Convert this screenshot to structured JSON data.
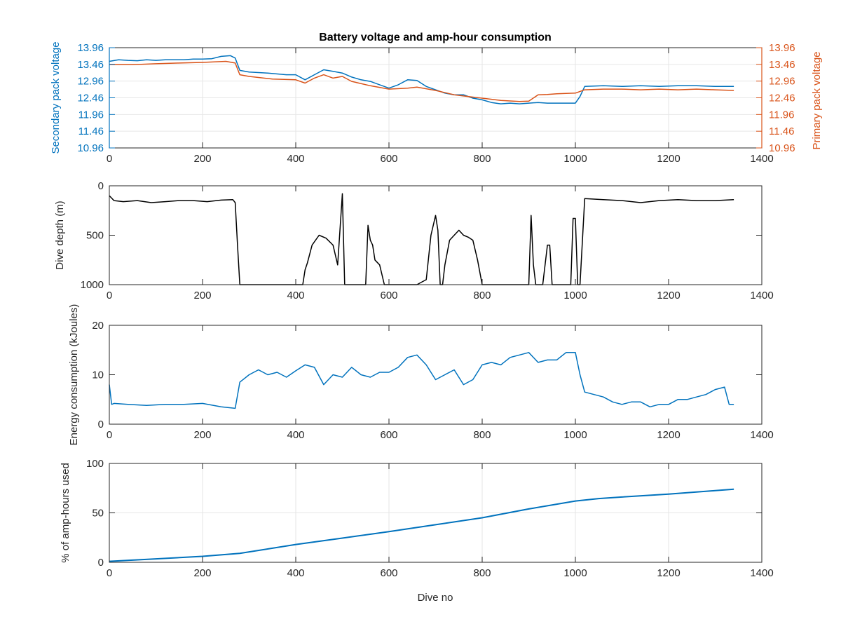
{
  "figure": {
    "title": "Battery voltage and amp-hour consumption",
    "xlabel": "Dive no"
  },
  "colors": {
    "blue": "#0072BD",
    "orange": "#D95319",
    "black": "#000000",
    "axis": "#262626",
    "grid": "#e6e6e6"
  },
  "chart_data": [
    {
      "type": "line",
      "title": "Battery voltage and amp-hour consumption",
      "xlabel": "",
      "ylabel": "Secondary pack voltage",
      "ylabel_right": "Primary pack voltage",
      "xlim": [
        0,
        1400
      ],
      "ylim": [
        10.96,
        13.96
      ],
      "xticks": [
        "0",
        "200",
        "400",
        "600",
        "800",
        "1000",
        "1200",
        "1400"
      ],
      "yticks": [
        "13.96",
        "13.46",
        "12.96",
        "12.46",
        "11.96",
        "11.46",
        "10.96"
      ],
      "yticks_right": [
        "13.96",
        "13.46",
        "12.96",
        "12.46",
        "11.96",
        "11.46",
        "10.96"
      ],
      "grid": true,
      "series": [
        {
          "color": "blue",
          "axis": "left",
          "x": [
            0,
            20,
            40,
            60,
            80,
            100,
            120,
            140,
            160,
            180,
            200,
            220,
            240,
            260,
            270,
            280,
            300,
            340,
            380,
            400,
            420,
            440,
            460,
            480,
            500,
            520,
            540,
            560,
            580,
            600,
            620,
            640,
            660,
            680,
            700,
            720,
            740,
            760,
            780,
            800,
            820,
            840,
            860,
            880,
            900,
            920,
            940,
            960,
            980,
            1000,
            1010,
            1020,
            1060,
            1100,
            1140,
            1180,
            1220,
            1260,
            1300,
            1340
          ],
          "y": [
            13.55,
            13.6,
            13.58,
            13.57,
            13.6,
            13.58,
            13.6,
            13.6,
            13.6,
            13.62,
            13.62,
            13.63,
            13.7,
            13.72,
            13.65,
            13.28,
            13.23,
            13.2,
            13.15,
            13.15,
            13.0,
            13.15,
            13.3,
            13.25,
            13.2,
            13.08,
            13.0,
            12.95,
            12.85,
            12.75,
            12.85,
            13.0,
            12.98,
            12.8,
            12.7,
            12.6,
            12.55,
            12.55,
            12.45,
            12.4,
            12.32,
            12.28,
            12.3,
            12.28,
            12.3,
            12.32,
            12.3,
            12.3,
            12.3,
            12.3,
            12.5,
            12.8,
            12.82,
            12.8,
            12.82,
            12.8,
            12.82,
            12.82,
            12.8,
            12.8
          ]
        },
        {
          "color": "orange",
          "axis": "right",
          "x": [
            0,
            50,
            100,
            150,
            200,
            250,
            270,
            280,
            300,
            350,
            400,
            420,
            440,
            460,
            480,
            500,
            520,
            560,
            600,
            640,
            660,
            700,
            740,
            780,
            800,
            840,
            880,
            900,
            920,
            940,
            960,
            1000,
            1020,
            1060,
            1100,
            1140,
            1180,
            1220,
            1260,
            1300,
            1340
          ],
          "y": [
            13.45,
            13.45,
            13.48,
            13.5,
            13.52,
            13.55,
            13.5,
            13.15,
            13.1,
            13.02,
            13.0,
            12.9,
            13.05,
            13.15,
            13.05,
            13.1,
            12.95,
            12.82,
            12.72,
            12.75,
            12.78,
            12.68,
            12.55,
            12.48,
            12.45,
            12.38,
            12.35,
            12.36,
            12.55,
            12.56,
            12.58,
            12.6,
            12.7,
            12.72,
            12.72,
            12.7,
            12.72,
            12.7,
            12.72,
            12.7,
            12.68
          ]
        }
      ]
    },
    {
      "type": "line",
      "xlabel": "",
      "ylabel": "Dive depth (m)",
      "xlim": [
        0,
        1400
      ],
      "ylim": [
        1000,
        0
      ],
      "xticks": [
        "0",
        "200",
        "400",
        "600",
        "800",
        "1000",
        "1200",
        "1400"
      ],
      "yticks": [
        "0",
        "500",
        "1000"
      ],
      "grid": false,
      "series": [
        {
          "color": "black",
          "x": [
            0,
            10,
            30,
            60,
            90,
            120,
            150,
            180,
            210,
            240,
            265,
            270,
            275,
            280,
            300,
            350,
            400,
            415,
            420,
            425,
            435,
            450,
            465,
            480,
            490,
            500,
            505,
            510,
            550,
            555,
            560,
            565,
            570,
            580,
            590,
            600,
            610,
            620,
            660,
            680,
            690,
            700,
            705,
            710,
            715,
            720,
            730,
            740,
            750,
            760,
            770,
            780,
            790,
            800,
            850,
            900,
            905,
            910,
            915,
            920,
            930,
            940,
            945,
            950,
            955,
            960,
            990,
            995,
            1000,
            1005,
            1010,
            1020,
            1060,
            1100,
            1140,
            1180,
            1220,
            1260,
            1300,
            1340
          ],
          "y": [
            100,
            150,
            160,
            150,
            170,
            160,
            150,
            150,
            160,
            145,
            140,
            170,
            600,
            1000,
            1000,
            1000,
            1000,
            1000,
            850,
            780,
            600,
            500,
            530,
            600,
            800,
            80,
            1000,
            1000,
            1000,
            400,
            550,
            600,
            750,
            800,
            1000,
            1000,
            1000,
            1000,
            1000,
            950,
            500,
            300,
            450,
            1000,
            1000,
            800,
            550,
            500,
            450,
            500,
            520,
            550,
            750,
            1000,
            1000,
            1000,
            300,
            800,
            1000,
            1000,
            1000,
            600,
            600,
            1000,
            1000,
            1000,
            1000,
            330,
            330,
            1000,
            1000,
            130,
            140,
            150,
            170,
            150,
            140,
            150,
            150,
            140
          ]
        }
      ]
    },
    {
      "type": "line",
      "xlabel": "",
      "ylabel": "Energy consumption (kJoules)",
      "xlim": [
        0,
        1400
      ],
      "ylim": [
        0,
        20
      ],
      "xticks": [
        "0",
        "200",
        "400",
        "600",
        "800",
        "1000",
        "1200",
        "1400"
      ],
      "yticks": [
        "0",
        "10",
        "20"
      ],
      "grid": false,
      "series": [
        {
          "color": "blue",
          "x": [
            0,
            5,
            10,
            40,
            80,
            120,
            160,
            200,
            240,
            270,
            280,
            300,
            320,
            340,
            360,
            380,
            400,
            420,
            440,
            460,
            480,
            500,
            520,
            540,
            560,
            580,
            600,
            620,
            640,
            660,
            680,
            700,
            720,
            740,
            760,
            780,
            800,
            820,
            840,
            860,
            880,
            900,
            920,
            940,
            960,
            980,
            1000,
            1010,
            1020,
            1040,
            1060,
            1080,
            1100,
            1120,
            1140,
            1160,
            1180,
            1200,
            1220,
            1240,
            1260,
            1280,
            1300,
            1320,
            1330,
            1340
          ],
          "y": [
            8,
            4,
            4.2,
            4,
            3.8,
            4,
            4,
            4.2,
            3.5,
            3.2,
            8.5,
            10,
            11,
            10,
            10.5,
            9.5,
            10.8,
            12,
            11.5,
            8,
            10,
            9.5,
            11.5,
            10,
            9.5,
            10.5,
            10.5,
            11.5,
            13.5,
            14,
            12,
            9,
            10,
            11,
            8,
            9,
            12,
            12.5,
            12,
            13.5,
            14,
            14.5,
            12.5,
            13,
            13,
            14.5,
            14.5,
            10,
            6.5,
            6,
            5.5,
            4.5,
            4,
            4.5,
            4.5,
            3.5,
            4,
            4,
            5,
            5,
            5.5,
            6,
            7,
            7.5,
            4,
            4
          ]
        }
      ]
    },
    {
      "type": "line",
      "xlabel": "Dive no",
      "ylabel": "% of amp-hours used",
      "xlim": [
        0,
        1400
      ],
      "ylim": [
        0,
        100
      ],
      "xticks": [
        "0",
        "200",
        "400",
        "600",
        "800",
        "1000",
        "1200",
        "1400"
      ],
      "yticks": [
        "0",
        "50",
        "100"
      ],
      "grid": true,
      "series": [
        {
          "color": "blue",
          "x": [
            0,
            100,
            200,
            280,
            400,
            500,
            600,
            700,
            800,
            900,
            1000,
            1050,
            1100,
            1200,
            1300,
            1340
          ],
          "y": [
            1,
            3.5,
            6,
            9,
            18,
            24.5,
            31,
            38,
            45,
            54,
            62,
            64.5,
            66,
            69,
            72.5,
            74
          ]
        }
      ]
    }
  ]
}
